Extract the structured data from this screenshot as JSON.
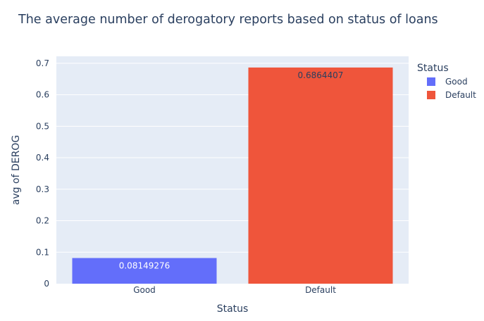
{
  "chart_data": {
    "type": "bar",
    "title": "The average number of derogatory reports based on status of loans",
    "xlabel": "Status",
    "ylabel": "avg of DEROG",
    "categories": [
      "Good",
      "Default"
    ],
    "series": [
      {
        "name": "Good",
        "category": "Good",
        "value": 0.08149276,
        "label": "0.08149276",
        "color": "#636efa",
        "label_color": "#ffffff"
      },
      {
        "name": "Default",
        "category": "Default",
        "value": 0.6864407,
        "label": "0.6864407",
        "color": "#ef553b",
        "label_color": "#2a3f5f"
      }
    ],
    "ylim": [
      0,
      0.722
    ],
    "yticks": [
      0,
      0.1,
      0.2,
      0.3,
      0.4,
      0.5,
      0.6,
      0.7
    ],
    "ytick_labels": [
      "0",
      "0.1",
      "0.2",
      "0.3",
      "0.4",
      "0.5",
      "0.6",
      "0.7"
    ],
    "grid": true,
    "legend": {
      "title": "Status",
      "placement": "top-right"
    },
    "colors": {
      "plot_bg": "#e5ecf6",
      "grid": "#ffffff",
      "text": "#2a3f5f"
    }
  }
}
